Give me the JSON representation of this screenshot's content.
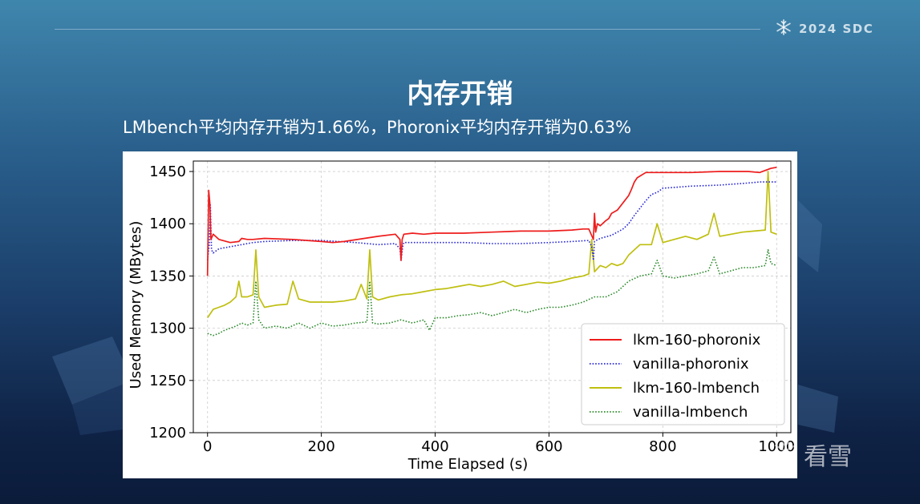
{
  "header": {
    "brand": "2024 SDC",
    "brand_icon": "snowflake-icon"
  },
  "slide": {
    "title": "内存开销",
    "subtitle": "LMbench平均内存开销为1.66%，Phoronix平均内存开销为0.63%"
  },
  "watermark": {
    "text": "看雪",
    "icon": "snowflake-icon"
  },
  "chart_data": {
    "type": "line",
    "title": "",
    "xlabel": "Time Elapsed (s)",
    "ylabel": "Used Memory (MBytes)",
    "xlim": [
      -25,
      1025
    ],
    "ylim": [
      1200,
      1460
    ],
    "xticks": [
      0,
      200,
      400,
      600,
      800,
      1000
    ],
    "yticks": [
      1200,
      1250,
      1300,
      1350,
      1400,
      1450
    ],
    "grid": true,
    "legend": "bottom-right",
    "series": [
      {
        "name": "lkm-160-phoronix",
        "color": "#ee1c1c",
        "style": "solid",
        "x": [
          0,
          2,
          4,
          6,
          10,
          20,
          40,
          55,
          60,
          70,
          80,
          100,
          150,
          200,
          220,
          240,
          300,
          330,
          338,
          340,
          342,
          345,
          360,
          380,
          400,
          450,
          500,
          550,
          600,
          640,
          660,
          670,
          678,
          680,
          682,
          685,
          690,
          700,
          705,
          710,
          720,
          730,
          740,
          745,
          750,
          755,
          770,
          800,
          850,
          900,
          950,
          970,
          990,
          1000
        ],
        "y": [
          1350,
          1432,
          1420,
          1385,
          1390,
          1385,
          1382,
          1383,
          1386,
          1385,
          1385,
          1386,
          1385,
          1383,
          1382,
          1383,
          1388,
          1390,
          1385,
          1365,
          1385,
          1390,
          1391,
          1390,
          1391,
          1391,
          1392,
          1393,
          1393,
          1394,
          1395,
          1395,
          1385,
          1410,
          1392,
          1400,
          1398,
          1403,
          1405,
          1410,
          1413,
          1420,
          1427,
          1433,
          1440,
          1444,
          1449,
          1449,
          1449,
          1450,
          1450,
          1449,
          1453,
          1454
        ]
      },
      {
        "name": "vanilla-phoronix",
        "color": "#2a2ad6",
        "style": "dotted",
        "x": [
          0,
          3,
          5,
          7,
          10,
          20,
          40,
          60,
          80,
          100,
          150,
          200,
          230,
          260,
          300,
          330,
          338,
          340,
          343,
          345,
          360,
          400,
          450,
          500,
          550,
          600,
          640,
          670,
          675,
          678,
          680,
          683,
          690,
          710,
          720,
          730,
          740,
          750,
          760,
          770,
          780,
          790,
          800,
          850,
          900,
          950,
          970,
          990,
          1000
        ],
        "y": [
          1365,
          1380,
          1418,
          1375,
          1372,
          1376,
          1378,
          1380,
          1382,
          1383,
          1384,
          1384,
          1383,
          1382,
          1380,
          1381,
          1376,
          1365,
          1378,
          1382,
          1382,
          1382,
          1382,
          1381,
          1381,
          1382,
          1383,
          1384,
          1378,
          1365,
          1383,
          1384,
          1386,
          1389,
          1392,
          1395,
          1400,
          1408,
          1415,
          1422,
          1428,
          1430,
          1434,
          1436,
          1437,
          1439,
          1440,
          1440,
          1440
        ]
      },
      {
        "name": "lkm-160-lmbench",
        "color": "#bfbf10",
        "style": "solid",
        "x": [
          0,
          10,
          20,
          30,
          40,
          50,
          55,
          60,
          70,
          80,
          85,
          90,
          100,
          120,
          140,
          150,
          160,
          180,
          200,
          220,
          240,
          260,
          270,
          280,
          285,
          290,
          300,
          320,
          340,
          360,
          380,
          400,
          420,
          440,
          460,
          480,
          500,
          520,
          540,
          560,
          580,
          600,
          620,
          640,
          660,
          670,
          675,
          680,
          690,
          700,
          710,
          720,
          730,
          740,
          750,
          760,
          780,
          790,
          800,
          820,
          840,
          860,
          880,
          890,
          900,
          920,
          940,
          960,
          980,
          985,
          990,
          1000
        ],
        "y": [
          1310,
          1318,
          1320,
          1322,
          1325,
          1330,
          1345,
          1330,
          1330,
          1332,
          1375,
          1330,
          1320,
          1322,
          1323,
          1345,
          1328,
          1325,
          1325,
          1325,
          1326,
          1328,
          1342,
          1328,
          1375,
          1330,
          1327,
          1330,
          1332,
          1333,
          1335,
          1337,
          1338,
          1340,
          1342,
          1340,
          1342,
          1345,
          1340,
          1342,
          1344,
          1343,
          1345,
          1348,
          1350,
          1352,
          1385,
          1354,
          1360,
          1358,
          1362,
          1360,
          1362,
          1370,
          1375,
          1380,
          1380,
          1400,
          1382,
          1385,
          1388,
          1385,
          1390,
          1410,
          1388,
          1390,
          1392,
          1393,
          1394,
          1450,
          1392,
          1390
        ]
      },
      {
        "name": "vanilla-lmbench",
        "color": "#2e8b2e",
        "style": "dotted",
        "x": [
          0,
          10,
          20,
          30,
          40,
          50,
          60,
          70,
          80,
          85,
          90,
          100,
          120,
          140,
          160,
          180,
          200,
          220,
          240,
          260,
          280,
          285,
          290,
          300,
          320,
          340,
          360,
          380,
          390,
          400,
          420,
          440,
          460,
          480,
          500,
          520,
          540,
          560,
          580,
          600,
          620,
          640,
          660,
          680,
          700,
          720,
          740,
          760,
          780,
          790,
          800,
          820,
          840,
          860,
          880,
          890,
          900,
          920,
          940,
          960,
          980,
          985,
          990,
          1000
        ],
        "y": [
          1295,
          1293,
          1295,
          1298,
          1300,
          1302,
          1305,
          1303,
          1305,
          1345,
          1308,
          1300,
          1302,
          1300,
          1305,
          1300,
          1305,
          1302,
          1303,
          1305,
          1306,
          1345,
          1305,
          1304,
          1305,
          1308,
          1305,
          1308,
          1298,
          1310,
          1310,
          1312,
          1313,
          1315,
          1312,
          1315,
          1318,
          1315,
          1318,
          1320,
          1320,
          1322,
          1325,
          1330,
          1330,
          1335,
          1345,
          1350,
          1352,
          1365,
          1350,
          1348,
          1350,
          1352,
          1355,
          1368,
          1352,
          1355,
          1358,
          1358,
          1360,
          1375,
          1362,
          1360
        ]
      }
    ]
  }
}
